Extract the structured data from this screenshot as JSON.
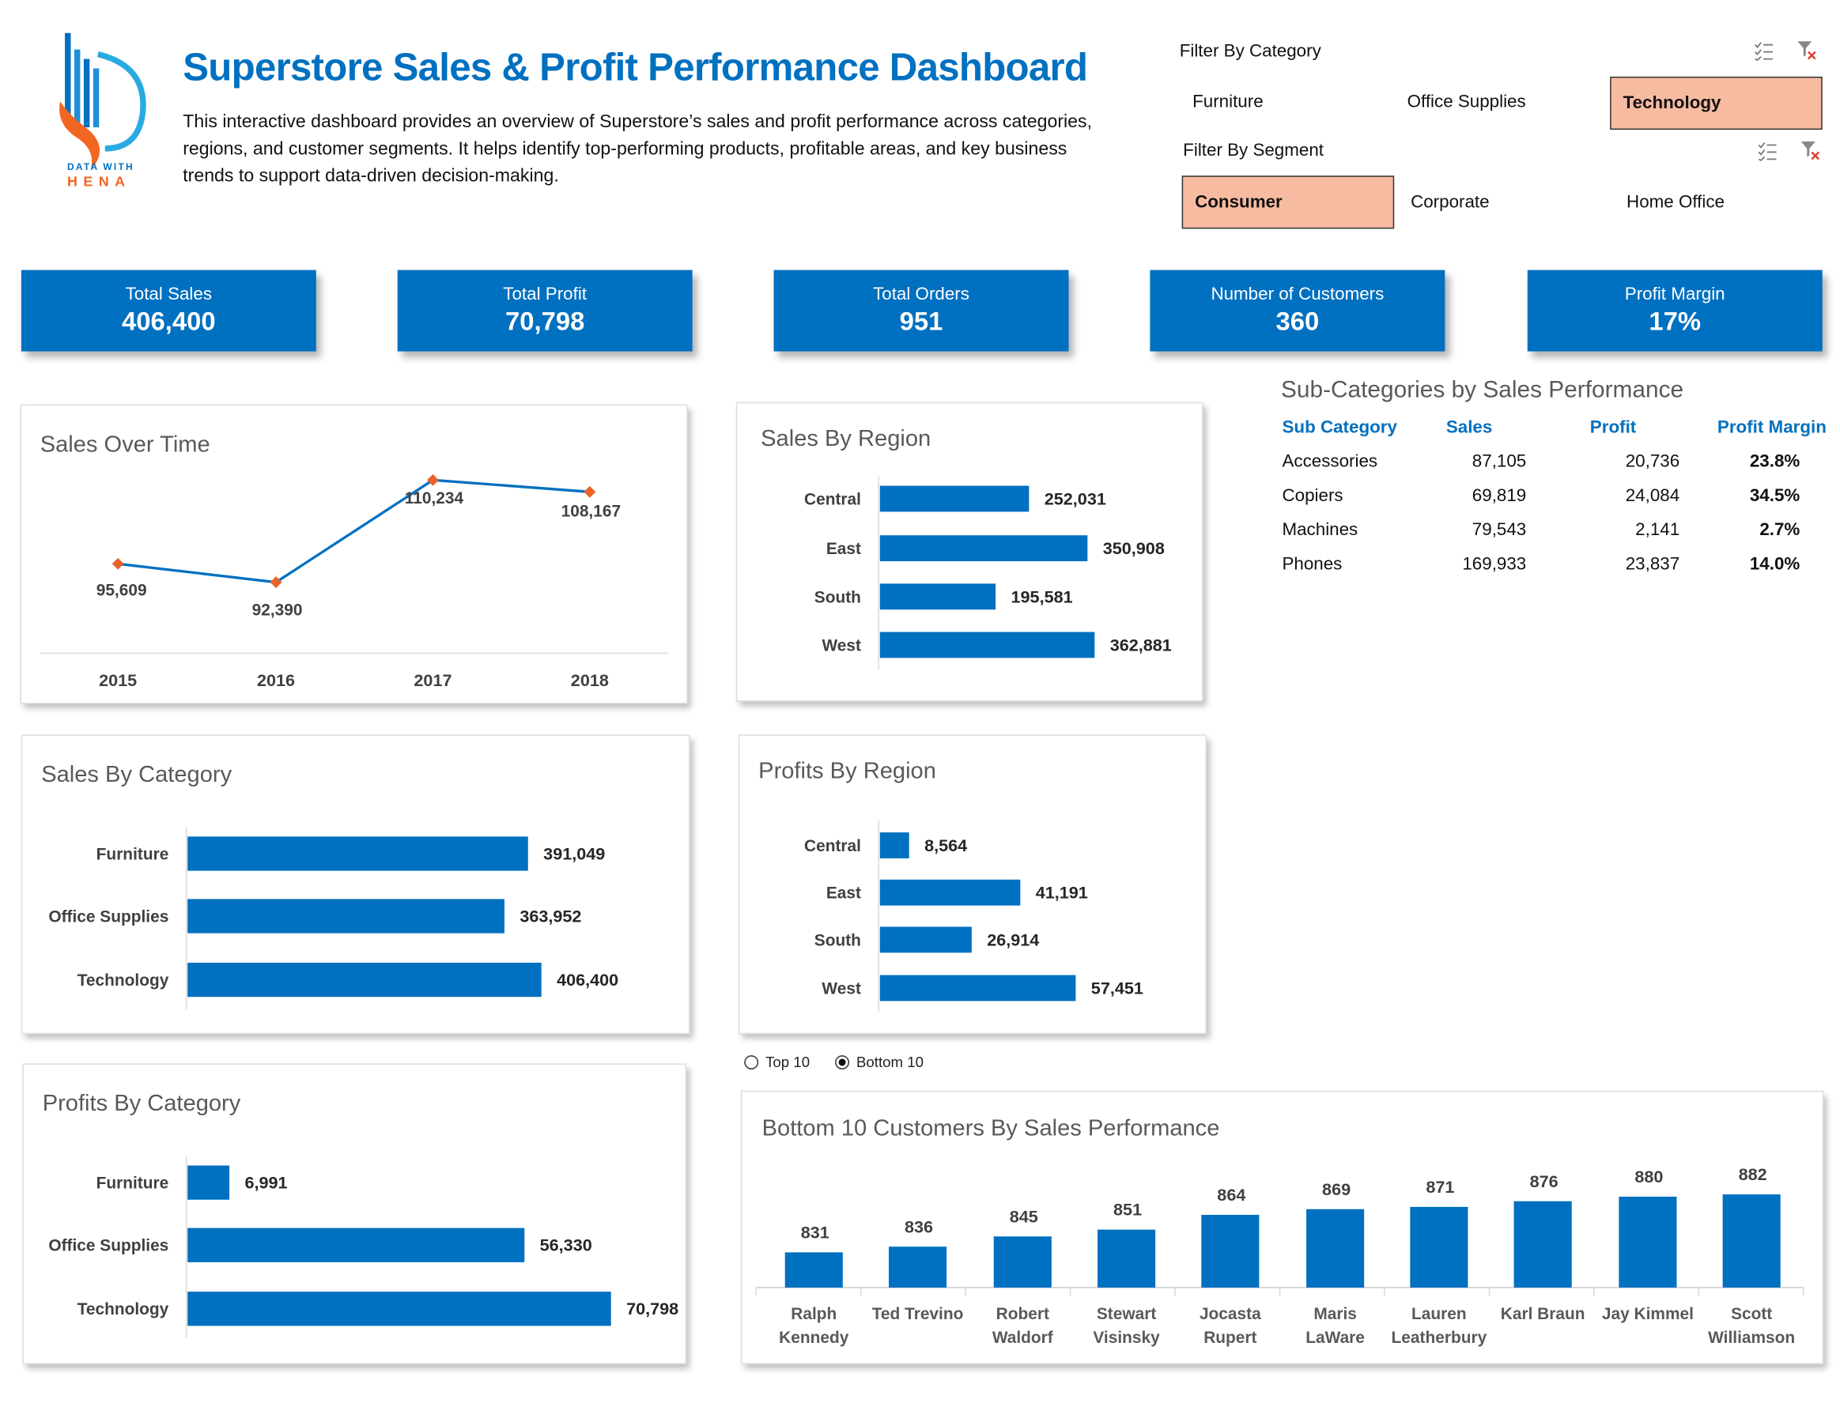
{
  "header": {
    "logo_text": "DATA WITH HENA",
    "title": "Superstore Sales & Profit Performance Dashboard",
    "description": "This interactive dashboard provides an overview of Superstore’s sales and profit performance across categories, regions, and customer segments. It helps identify top-performing products, profitable areas, and key business trends to support data-driven decision-making."
  },
  "filters": {
    "category": {
      "label": "Filter By Category",
      "options": [
        "Furniture",
        "Office Supplies",
        "Technology"
      ],
      "selected": "Technology"
    },
    "segment": {
      "label": "Filter By Segment",
      "options": [
        "Consumer",
        "Corporate",
        "Home Office"
      ],
      "selected": "Consumer"
    },
    "icons": [
      "multi-select-icon",
      "clear-filter-icon"
    ]
  },
  "kpis": [
    {
      "label": "Total Sales",
      "value": "406,400"
    },
    {
      "label": "Total Profit",
      "value": "70,798"
    },
    {
      "label": "Total Orders",
      "value": "951"
    },
    {
      "label": "Number of Customers",
      "value": "360"
    },
    {
      "label": "Profit Margin",
      "value": "17%"
    }
  ],
  "subcategories": {
    "title": "Sub-Categories by Sales Performance",
    "headers": [
      "Sub Category",
      "Sales",
      "Profit",
      "Profit Margin"
    ],
    "rows": [
      [
        "Accessories",
        "87,105",
        "20,736",
        "23.8%"
      ],
      [
        "Copiers",
        "69,819",
        "24,084",
        "34.5%"
      ],
      [
        "Machines",
        "79,543",
        "2,141",
        "2.7%"
      ],
      [
        "Phones",
        "169,933",
        "23,837",
        "14.0%"
      ]
    ]
  },
  "toggle": {
    "options": [
      "Top 10",
      "Bottom 10"
    ],
    "selected": "Bottom 10"
  },
  "colors": {
    "accent": "#0070C0",
    "marker": "#E8622A",
    "selected_filter": "#F7BBA2",
    "title_gray": "#595959"
  },
  "chart_data": [
    {
      "id": "sales-over-time",
      "type": "line",
      "title": "Sales Over Time",
      "categories": [
        "2015",
        "2016",
        "2017",
        "2018"
      ],
      "values": [
        95609,
        92390,
        110234,
        108167
      ],
      "labels": [
        "95,609",
        "92,390",
        "110,234",
        "108,167"
      ],
      "ylim": [
        80000,
        115000
      ],
      "grid": false
    },
    {
      "id": "sales-by-region",
      "type": "bar",
      "orientation": "horizontal",
      "title": "Sales By Region",
      "categories": [
        "Central",
        "East",
        "South",
        "West"
      ],
      "values": [
        252031,
        350908,
        195581,
        362881
      ],
      "labels": [
        "252,031",
        "350,908",
        "195,581",
        "362,881"
      ],
      "xlim": [
        0,
        400000
      ],
      "grid": false
    },
    {
      "id": "sales-by-category",
      "type": "bar",
      "orientation": "horizontal",
      "title": "Sales By Category",
      "categories": [
        "Furniture",
        "Office Supplies",
        "Technology"
      ],
      "values": [
        391049,
        363952,
        406400
      ],
      "labels": [
        "391,049",
        "363,952",
        "406,400"
      ],
      "grid": false
    },
    {
      "id": "profits-by-region",
      "type": "bar",
      "orientation": "horizontal",
      "title": "Profits By Region",
      "categories": [
        "Central",
        "East",
        "South",
        "West"
      ],
      "values": [
        8564,
        41191,
        26914,
        57451
      ],
      "labels": [
        "8,564",
        "41,191",
        "26,914",
        "57,451"
      ],
      "grid": false
    },
    {
      "id": "profits-by-category",
      "type": "bar",
      "orientation": "horizontal",
      "title": "Profits By Category",
      "categories": [
        "Furniture",
        "Office Supplies",
        "Technology"
      ],
      "values": [
        6991,
        56330,
        70798
      ],
      "labels": [
        "6,991",
        "56,330",
        "70,798"
      ],
      "grid": false
    },
    {
      "id": "bottom-customers",
      "type": "bar",
      "orientation": "vertical",
      "title": "Bottom 10 Customers By Sales Performance",
      "categories": [
        "Ralph Kennedy",
        "Ted Trevino",
        "Robert Waldorf",
        "Stewart Visinsky",
        "Jocasta Rupert",
        "Maris LaWare",
        "Lauren Leatherbury",
        "Karl Braun",
        "Jay Kimmel",
        "Scott Williamson"
      ],
      "values": [
        831,
        836,
        845,
        851,
        864,
        869,
        871,
        876,
        880,
        882
      ],
      "ylim": [
        800,
        885
      ],
      "grid": false
    }
  ]
}
